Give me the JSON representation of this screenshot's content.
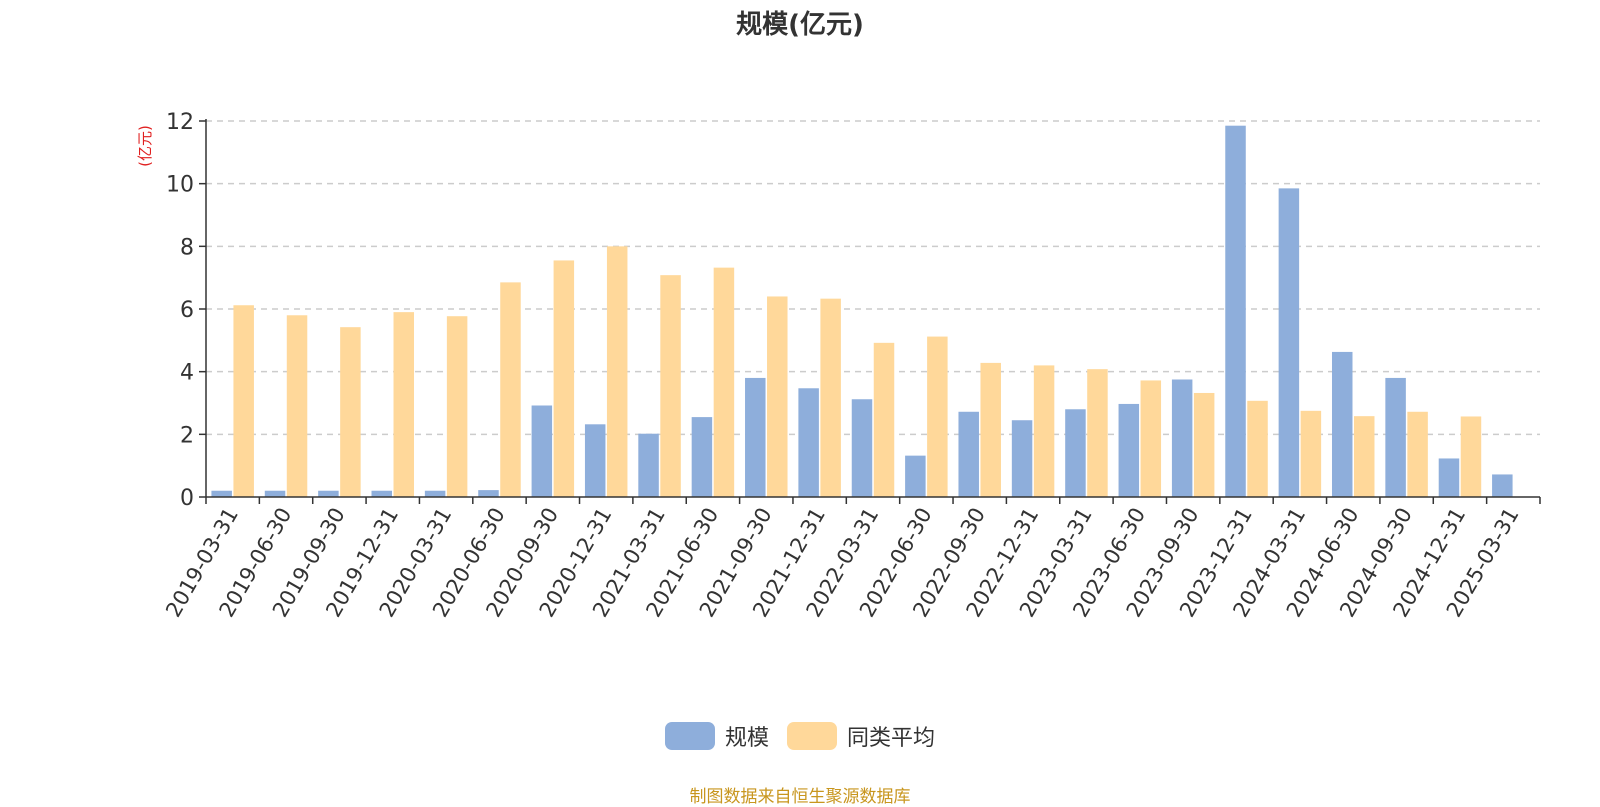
{
  "chart_data": {
    "type": "bar",
    "title": "规模(亿元)",
    "ylabel": "(亿元)",
    "ylim": [
      0,
      12
    ],
    "yticks": [
      0,
      2,
      4,
      6,
      8,
      10,
      12
    ],
    "grid": "horizontal dashed",
    "legend_position": "bottom",
    "categories": [
      "2019-03-31",
      "2019-06-30",
      "2019-09-30",
      "2019-12-31",
      "2020-03-31",
      "2020-06-30",
      "2020-09-30",
      "2020-12-31",
      "2021-03-31",
      "2021-06-30",
      "2021-09-30",
      "2021-12-31",
      "2022-03-31",
      "2022-06-30",
      "2022-09-30",
      "2022-12-31",
      "2023-03-31",
      "2023-06-30",
      "2023-09-30",
      "2023-12-31",
      "2024-03-31",
      "2024-06-30",
      "2024-09-30",
      "2024-12-31",
      "2025-03-31"
    ],
    "series": [
      {
        "name": "规模",
        "color": "#8eaedb",
        "values": [
          0.2,
          0.2,
          0.2,
          0.2,
          0.2,
          0.22,
          2.92,
          2.32,
          2.02,
          2.55,
          3.8,
          3.47,
          3.12,
          1.32,
          2.72,
          2.45,
          2.8,
          2.97,
          3.75,
          11.85,
          9.85,
          4.63,
          3.8,
          1.23,
          0.72
        ]
      },
      {
        "name": "同类平均",
        "color": "#ffd89a",
        "values": [
          6.12,
          5.8,
          5.42,
          5.9,
          5.77,
          6.85,
          7.55,
          8.0,
          7.08,
          7.32,
          6.4,
          6.33,
          4.92,
          5.12,
          4.28,
          4.2,
          4.08,
          3.72,
          3.32,
          3.07,
          2.75,
          2.58,
          2.72,
          2.57,
          null
        ]
      }
    ]
  },
  "footer": "制图数据来自恒生聚源数据库"
}
